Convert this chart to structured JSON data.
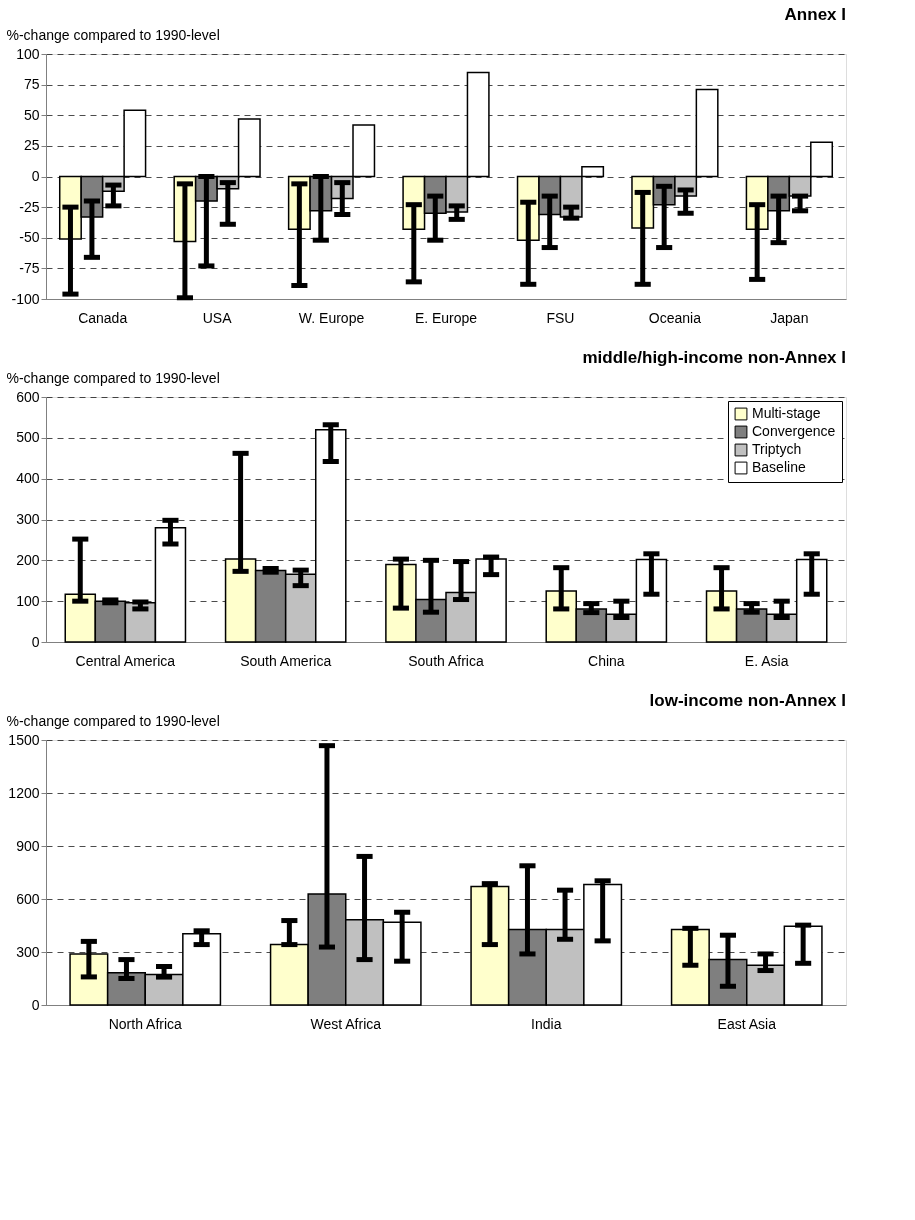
{
  "chart_data": [
    {
      "type": "bar",
      "title": "Annex I",
      "ylabel": "%-change compared to 1990-level",
      "categories": [
        "Canada",
        "USA",
        "W. Europe",
        "E. Europe",
        "FSU",
        "Oceania",
        "Japan"
      ],
      "ylim": [
        -100,
        100
      ],
      "yticks": [
        -100,
        -75,
        -50,
        -25,
        0,
        25,
        50,
        75,
        100
      ],
      "grid": "y",
      "legend": false,
      "series": [
        {
          "color": "#ffffcc",
          "values": [
            -51,
            -53,
            -43,
            -43,
            -52,
            -42,
            -43
          ],
          "errors": [
            [
              -96,
              -25
            ],
            [
              -99,
              -6
            ],
            [
              -89,
              -6
            ],
            [
              -86,
              -23
            ],
            [
              -88,
              -21
            ],
            [
              -88,
              -13
            ],
            [
              -84,
              -23
            ]
          ]
        },
        {
          "color": "#7f7f7f",
          "values": [
            -33,
            -20,
            -28,
            -30,
            -31,
            -23,
            -28
          ],
          "errors": [
            [
              -66,
              -20
            ],
            [
              -73,
              0
            ],
            [
              -52,
              0
            ],
            [
              -52,
              -16
            ],
            [
              -58,
              -16
            ],
            [
              -58,
              -8
            ],
            [
              -54,
              -16
            ]
          ]
        },
        {
          "color": "#c0c0c0",
          "values": [
            -12,
            -10,
            -18,
            -29,
            -33,
            -16,
            -16
          ],
          "errors": [
            [
              -24,
              -7
            ],
            [
              -39,
              -5
            ],
            [
              -31,
              -5
            ],
            [
              -35,
              -24
            ],
            [
              -34,
              -25
            ],
            [
              -30,
              -11
            ],
            [
              -28,
              -16
            ]
          ]
        },
        {
          "color": "#ffffff",
          "values": [
            54,
            47,
            42,
            85,
            8,
            71,
            28
          ]
        }
      ]
    },
    {
      "type": "bar",
      "title": "middle/high-income non-Annex I",
      "ylabel": "%-change compared to 1990-level",
      "categories": [
        "Central America",
        "South America",
        "South Africa",
        "China",
        "E. Asia"
      ],
      "ylim": [
        0,
        600
      ],
      "yticks": [
        0,
        100,
        200,
        300,
        400,
        500,
        600
      ],
      "grid": "y",
      "legend": "top right",
      "series": [
        {
          "name": "Multi-stage",
          "color": "#ffffcc",
          "values": [
            117,
            203,
            190,
            125,
            125
          ],
          "errors": [
            [
              100,
              252
            ],
            [
              173,
              462
            ],
            [
              83,
              203
            ],
            [
              81,
              182
            ],
            [
              81,
              182
            ]
          ]
        },
        {
          "name": "Convergence",
          "color": "#7f7f7f",
          "values": [
            100,
            175,
            104,
            81,
            81
          ],
          "errors": [
            [
              96,
              103
            ],
            [
              171,
              180
            ],
            [
              73,
              200
            ],
            [
              72,
              94
            ],
            [
              73,
              94
            ]
          ]
        },
        {
          "name": "Triptych",
          "color": "#c0c0c0",
          "values": [
            96,
            166,
            121,
            68,
            68
          ],
          "errors": [
            [
              81,
              98
            ],
            [
              138,
              176
            ],
            [
              104,
              197
            ],
            [
              60,
              100
            ],
            [
              60,
              100
            ]
          ]
        },
        {
          "name": "Baseline",
          "color": "#ffffff",
          "values": [
            280,
            520,
            203,
            202,
            202
          ],
          "errors": [
            [
              240,
              298
            ],
            [
              442,
              532
            ],
            [
              165,
              208
            ],
            [
              117,
              216
            ],
            [
              117,
              216
            ]
          ]
        }
      ]
    },
    {
      "type": "bar",
      "title": "low-income non-Annex I",
      "ylabel": "%-change compared to 1990-level",
      "categories": [
        "North Africa",
        "West Africa",
        "India",
        "East Asia"
      ],
      "ylim": [
        0,
        1500
      ],
      "yticks": [
        0,
        300,
        600,
        900,
        {
          "value": 1200,
          "label": "1200"
        },
        {
          "value": 1500,
          "label": "1500"
        }
      ],
      "grid": "y",
      "legend": false,
      "series": [
        {
          "color": "#ffffcc",
          "values": [
            289,
            342,
            671,
            427
          ],
          "errors": [
            [
              159,
              360
            ],
            [
              342,
              478
            ],
            [
              342,
              687
            ],
            [
              225,
              434
            ]
          ]
        },
        {
          "color": "#7f7f7f",
          "values": [
            182,
            629,
            427,
            257
          ],
          "errors": [
            [
              150,
              257
            ],
            [
              328,
              1468
            ],
            [
              289,
              788
            ],
            [
              106,
              395
            ]
          ]
        },
        {
          "color": "#c0c0c0",
          "values": [
            172,
            482,
            427,
            225
          ],
          "errors": [
            [
              158,
              218
            ],
            [
              257,
              841
            ],
            [
              372,
              650
            ],
            [
              195,
              289
            ]
          ]
        },
        {
          "color": "#ffffff",
          "values": [
            404,
            469,
            682,
            446
          ],
          "errors": [
            [
              342,
              420
            ],
            [
              248,
              525
            ],
            [
              363,
              703
            ],
            [
              236,
              452
            ]
          ]
        }
      ]
    }
  ]
}
